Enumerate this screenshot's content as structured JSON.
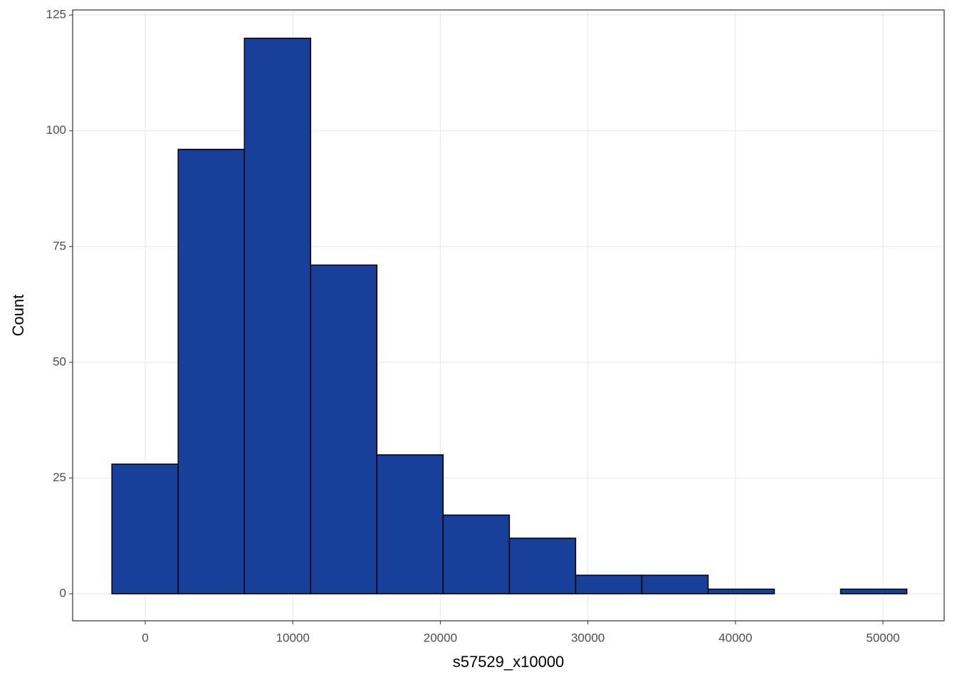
{
  "chart_data": {
    "type": "histogram",
    "x_label": "s57529_x10000",
    "y_label": "Count",
    "bins": [
      -2260,
      2230,
      6720,
      11210,
      15700,
      20190,
      24680,
      29170,
      33660,
      38150,
      42640,
      47130,
      51620
    ],
    "values": [
      28,
      96,
      120,
      71,
      30,
      17,
      12,
      4,
      4,
      1,
      0,
      1
    ],
    "color": "#18409a",
    "xlim": [
      -4923,
      54150
    ],
    "ylim": [
      -5.84,
      126.1
    ],
    "xticks": [
      0,
      10000,
      20000,
      30000,
      40000,
      50000
    ],
    "yticks": [
      0,
      25,
      50,
      75,
      100,
      125
    ],
    "grid": true
  }
}
